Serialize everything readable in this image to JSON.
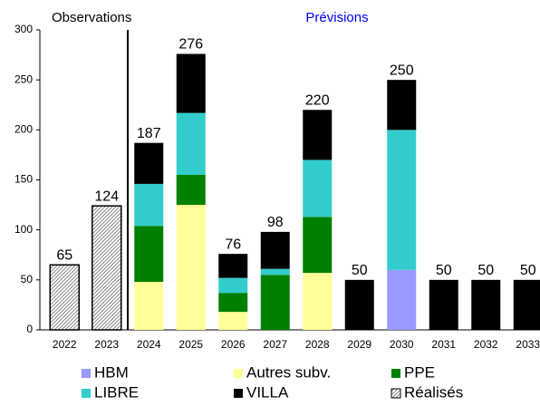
{
  "chart_data": {
    "type": "stacked-bar",
    "annotations": [
      {
        "text": "Observations",
        "color": "#000000"
      },
      {
        "text": "Prévisions",
        "color": "#0000ff"
      }
    ],
    "categories": [
      "2022",
      "2023",
      "2024",
      "2025",
      "2026",
      "2027",
      "2028",
      "2029",
      "2030",
      "2031",
      "2032",
      "2033"
    ],
    "series": [
      {
        "name": "HBM",
        "color": "#9999ff",
        "values": [
          null,
          null,
          null,
          null,
          null,
          null,
          null,
          null,
          60,
          null,
          null,
          null
        ]
      },
      {
        "name": "Autres subv.",
        "color": "#ffff99",
        "values": [
          null,
          null,
          48,
          125,
          18,
          null,
          57,
          null,
          null,
          null,
          null,
          null
        ]
      },
      {
        "name": "PPE",
        "color": "#008000",
        "values": [
          null,
          null,
          56,
          30,
          19,
          55,
          56,
          null,
          null,
          null,
          null,
          null
        ]
      },
      {
        "name": "LIBRE",
        "color": "#33cccc",
        "values": [
          null,
          null,
          42,
          62,
          15,
          6,
          57,
          null,
          140,
          null,
          null,
          null
        ]
      },
      {
        "name": "VILLA",
        "color": "#000000",
        "values": [
          null,
          null,
          41,
          59,
          24,
          37,
          50,
          50,
          50,
          50,
          50,
          50
        ]
      },
      {
        "name": "Réalisés",
        "color": "#ffffff",
        "pattern": "hatch",
        "values": [
          65,
          124,
          null,
          null,
          null,
          null,
          null,
          null,
          null,
          null,
          null,
          null
        ]
      }
    ],
    "totals": [
      65,
      124,
      187,
      276,
      76,
      98,
      220,
      50,
      250,
      50,
      50,
      50
    ],
    "ylim": [
      0,
      300
    ],
    "yticks": [
      0,
      50,
      100,
      150,
      200,
      250,
      300
    ],
    "grid": false
  }
}
